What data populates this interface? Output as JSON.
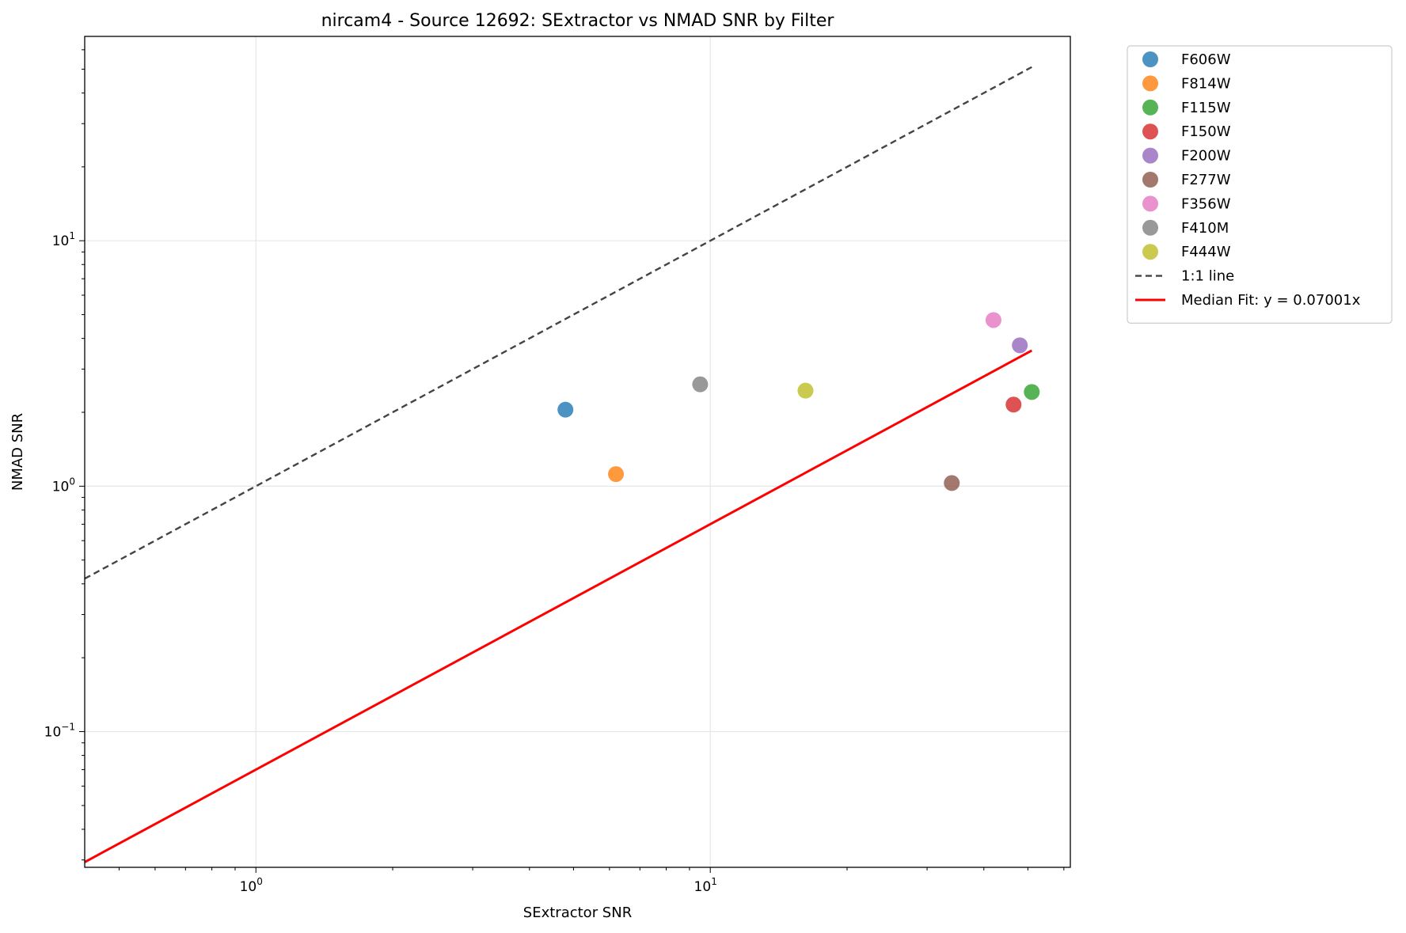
{
  "chart_data": {
    "type": "scatter",
    "title": "nircam4 - Source 12692: SExtractor vs NMAD SNR by Filter",
    "xlabel": "SExtractor SNR",
    "ylabel": "NMAD SNR",
    "xscale": "log",
    "yscale": "log",
    "xlim": [
      0.42,
      62
    ],
    "ylim": [
      0.028,
      68
    ],
    "xticks": [
      {
        "value": 1,
        "base": "10",
        "exp": "0"
      },
      {
        "value": 10,
        "base": "10",
        "exp": "1"
      }
    ],
    "yticks": [
      {
        "value": 0.1,
        "base": "10",
        "exp": "−1"
      },
      {
        "value": 1,
        "base": "10",
        "exp": "0"
      },
      {
        "value": 10,
        "base": "10",
        "exp": "1"
      }
    ],
    "grid": true,
    "legend_position": "outside upper right",
    "series": [
      {
        "name": "F606W",
        "color": "#1f77b4",
        "x": 4.8,
        "y": 2.05
      },
      {
        "name": "F814W",
        "color": "#ff7f0e",
        "x": 6.2,
        "y": 1.12
      },
      {
        "name": "F115W",
        "color": "#2ca02c",
        "x": 51.0,
        "y": 2.42
      },
      {
        "name": "F150W",
        "color": "#d62728",
        "x": 46.5,
        "y": 2.15
      },
      {
        "name": "F200W",
        "color": "#9467bd",
        "x": 48.0,
        "y": 3.75
      },
      {
        "name": "F277W",
        "color": "#8c564b",
        "x": 34.0,
        "y": 1.03
      },
      {
        "name": "F356W",
        "color": "#e377c2",
        "x": 42.0,
        "y": 4.75
      },
      {
        "name": "F410M",
        "color": "#7f7f7f",
        "x": 9.5,
        "y": 2.6
      },
      {
        "name": "F444W",
        "color": "#bcbd22",
        "x": 16.2,
        "y": 2.45
      }
    ],
    "lines": [
      {
        "name": "1:1 line",
        "color": "#444444",
        "style": "dashed",
        "x": [
          0.42,
          51.0
        ],
        "y": [
          0.42,
          51.0
        ]
      },
      {
        "name": "Median Fit: y = 0.07001x",
        "color": "#ff0000",
        "style": "solid",
        "slope": 0.07001,
        "x": [
          0.42,
          51.0
        ]
      }
    ]
  }
}
